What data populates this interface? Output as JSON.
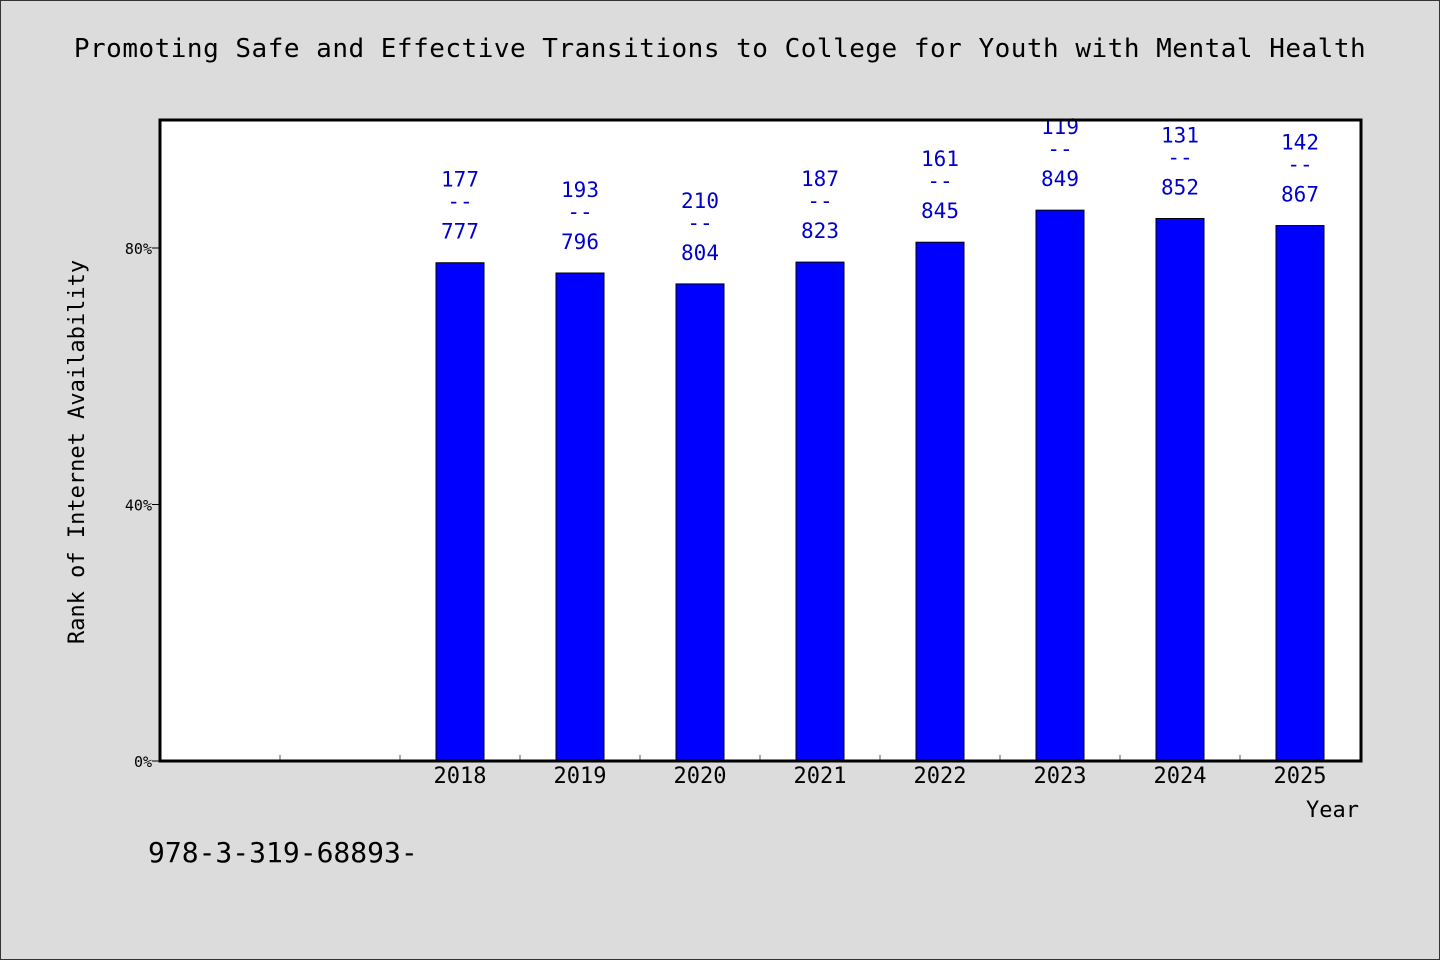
{
  "chart_data": {
    "type": "bar",
    "title": "Promoting Safe and Effective Transitions to College for Youth with Mental Health",
    "xlabel": "Year",
    "ylabel": "Rank of Internet Availability",
    "categories": [
      "2018",
      "2019",
      "2020",
      "2021",
      "2022",
      "2023",
      "2024",
      "2025"
    ],
    "values": [
      0.777,
      0.761,
      0.744,
      0.778,
      0.809,
      0.859,
      0.846,
      0.835
    ],
    "labels": [
      {
        "top": "177",
        "sep": "--",
        "bottom": "777"
      },
      {
        "top": "193",
        "sep": "--",
        "bottom": "796"
      },
      {
        "top": "210",
        "sep": "--",
        "bottom": "804"
      },
      {
        "top": "187",
        "sep": "--",
        "bottom": "823"
      },
      {
        "top": "161",
        "sep": "--",
        "bottom": "845"
      },
      {
        "top": "119",
        "sep": "--",
        "bottom": "849"
      },
      {
        "top": "131",
        "sep": "--",
        "bottom": "852"
      },
      {
        "top": "142",
        "sep": "--",
        "bottom": "867"
      }
    ],
    "yticks": [
      {
        "value": 0,
        "label": "0%"
      },
      {
        "value": 0.4,
        "label": "40%"
      },
      {
        "value": 0.8,
        "label": "80%"
      }
    ],
    "ylim": [
      0,
      1.0
    ],
    "bar_color": "#0000ff",
    "label_color": "#0000cc",
    "grid": false,
    "legend": "none"
  },
  "footer": {
    "code": "978-3-319-68893-"
  }
}
